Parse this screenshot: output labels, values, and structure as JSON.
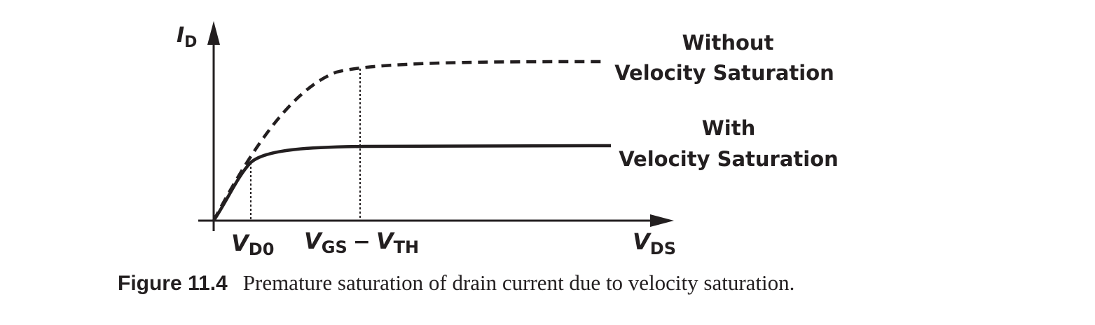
{
  "figure": {
    "number": "Figure 11.4",
    "caption": "Premature saturation of drain current due to velocity saturation."
  },
  "axes": {
    "y": {
      "symbol": "I",
      "subscript": "D"
    },
    "x": {
      "symbol": "V",
      "subscript": "DS"
    }
  },
  "x_markers": [
    {
      "id": "vd0",
      "parts": [
        {
          "symbol": "V",
          "subscript": "D0"
        }
      ]
    },
    {
      "id": "vgs-vth",
      "parts": [
        {
          "symbol": "V",
          "subscript": "GS"
        },
        {
          "operator": "−"
        },
        {
          "symbol": "V",
          "subscript": "TH"
        }
      ]
    }
  ],
  "curves": [
    {
      "id": "without",
      "label_line1": "Without",
      "label_line2": "Velocity Saturation",
      "style": "dashed"
    },
    {
      "id": "with",
      "label_line1": "With",
      "label_line2": "Velocity Saturation",
      "style": "solid"
    }
  ],
  "colors": {
    "ink": "#231f20",
    "background": "#ffffff"
  }
}
